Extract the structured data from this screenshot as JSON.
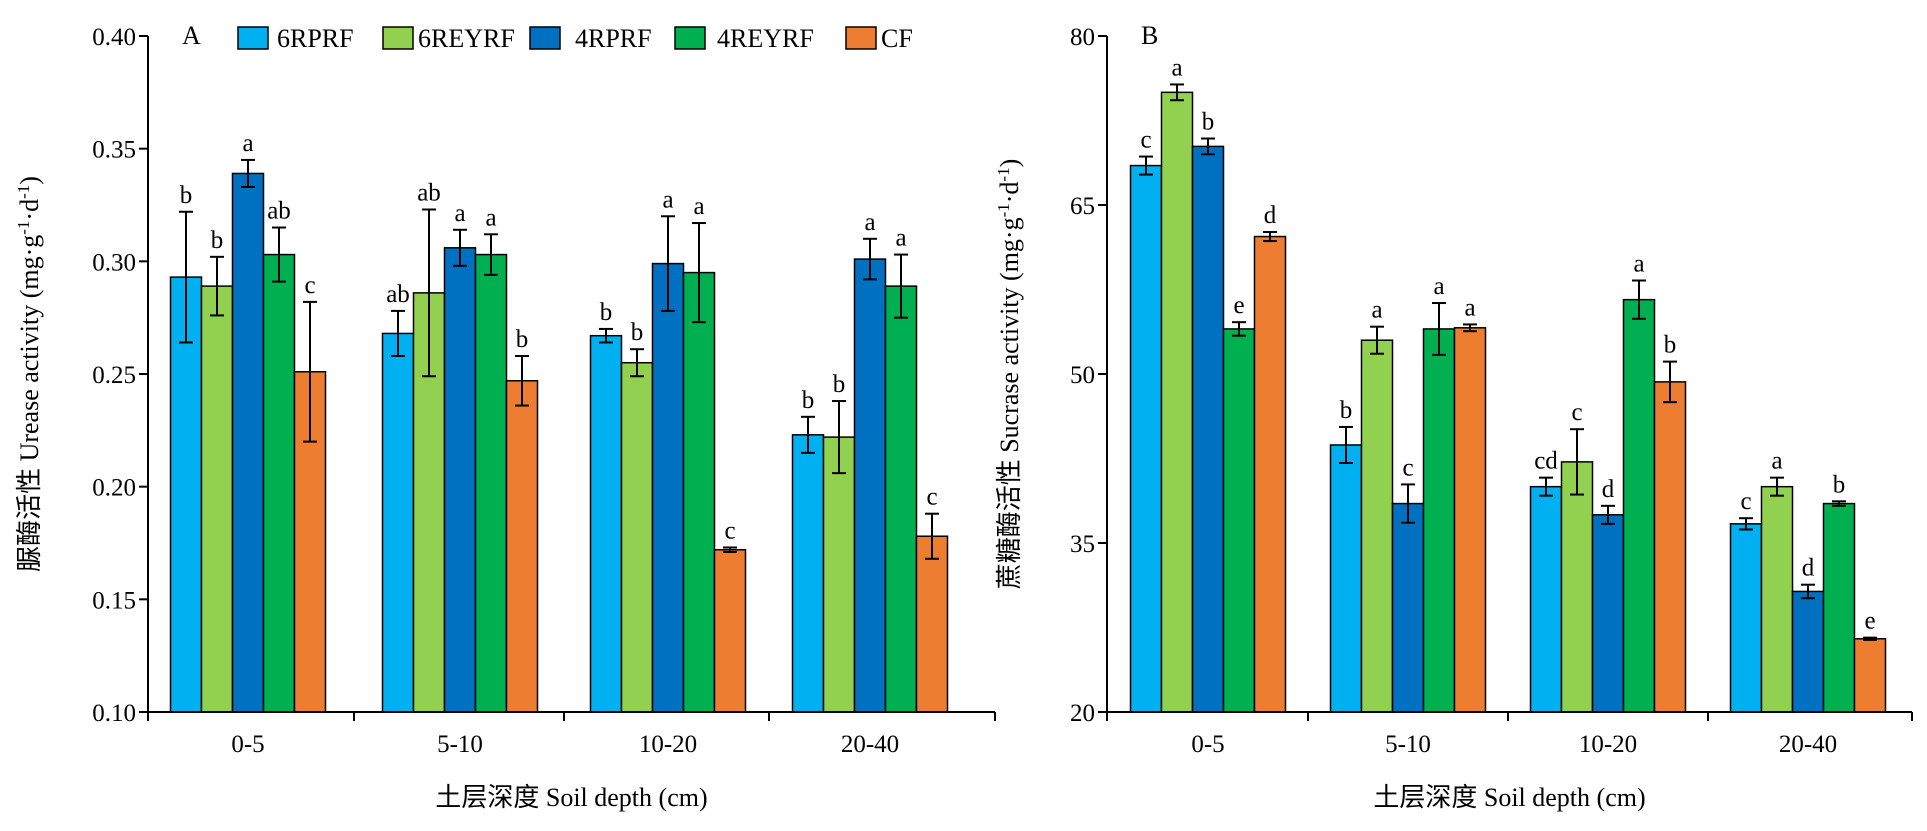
{
  "chart_data": [
    {
      "type": "bar",
      "panel_label": "A",
      "categories": [
        "0-5",
        "5-10",
        "10-20",
        "20-40"
      ],
      "series": [
        {
          "name": "6RPRF",
          "color": "#00b0f0",
          "values": [
            0.293,
            0.268,
            0.267,
            0.223
          ],
          "errors": [
            0.029,
            0.01,
            0.003,
            0.008
          ],
          "letters": [
            "b",
            "ab",
            "b",
            "b"
          ]
        },
        {
          "name": "6REYRF",
          "color": "#92d050",
          "values": [
            0.289,
            0.286,
            0.255,
            0.222
          ],
          "errors": [
            0.013,
            0.037,
            0.006,
            0.016
          ],
          "letters": [
            "b",
            "ab",
            "b",
            "b"
          ]
        },
        {
          "name": "4RPRF",
          "color": "#0070c0",
          "values": [
            0.339,
            0.306,
            0.299,
            0.301
          ],
          "errors": [
            0.006,
            0.008,
            0.021,
            0.009
          ],
          "letters": [
            "a",
            "a",
            "a",
            "a"
          ]
        },
        {
          "name": "4REYRF",
          "color": "#00b050",
          "values": [
            0.303,
            0.303,
            0.295,
            0.289
          ],
          "errors": [
            0.012,
            0.009,
            0.022,
            0.014
          ],
          "letters": [
            "ab",
            "a",
            "a",
            "a"
          ]
        },
        {
          "name": "CF",
          "color": "#ed7d31",
          "values": [
            0.251,
            0.247,
            0.172,
            0.178
          ],
          "errors": [
            0.031,
            0.011,
            0.001,
            0.01
          ],
          "letters": [
            "c",
            "b",
            "c",
            "c"
          ]
        }
      ],
      "xlabel": "土层深度 Soil depth (cm)",
      "ylabel_parts": [
        "脲酶活性 Urease activity (mg·g",
        "-1",
        "·d",
        "-1",
        ")"
      ],
      "ylim": [
        0.1,
        0.4
      ],
      "yticks": [
        "0.10",
        "0.15",
        "0.20",
        "0.25",
        "0.30",
        "0.35",
        "0.40"
      ],
      "legend": "top"
    },
    {
      "type": "bar",
      "panel_label": "B",
      "categories": [
        "0-5",
        "5-10",
        "10-20",
        "20-40"
      ],
      "series": [
        {
          "name": "6RPRF",
          "color": "#00b0f0",
          "values": [
            68.5,
            43.7,
            40.0,
            36.7
          ],
          "errors": [
            0.8,
            1.6,
            0.8,
            0.5
          ],
          "letters": [
            "c",
            "b",
            "cd",
            "c"
          ]
        },
        {
          "name": "6REYRF",
          "color": "#92d050",
          "values": [
            75.0,
            53.0,
            42.2,
            40.0
          ],
          "errors": [
            0.7,
            1.2,
            2.9,
            0.8
          ],
          "letters": [
            "a",
            "a",
            "c",
            "a"
          ]
        },
        {
          "name": "4RPRF",
          "color": "#0070c0",
          "values": [
            70.2,
            38.5,
            37.5,
            30.7
          ],
          "errors": [
            0.7,
            1.7,
            0.8,
            0.6
          ],
          "letters": [
            "b",
            "c",
            "d",
            "d"
          ]
        },
        {
          "name": "4REYRF",
          "color": "#00b050",
          "values": [
            54.0,
            54.0,
            56.6,
            38.5
          ],
          "errors": [
            0.6,
            2.3,
            1.7,
            0.2
          ],
          "letters": [
            "e",
            "a",
            "a",
            "b"
          ]
        },
        {
          "name": "CF",
          "color": "#ed7d31",
          "values": [
            62.2,
            54.1,
            49.3,
            26.5
          ],
          "errors": [
            0.4,
            0.3,
            1.8,
            0.1
          ],
          "letters": [
            "d",
            "a",
            "b",
            "e"
          ]
        }
      ],
      "xlabel": "土层深度 Soil depth (cm)",
      "ylabel_parts": [
        "蔗糖酶活性 Sucrase activity (mg·g",
        "-1",
        "·d",
        "-1",
        ")"
      ],
      "ylim": [
        20,
        80
      ],
      "yticks": [
        "20",
        "35",
        "50",
        "65",
        "80"
      ],
      "legend": "none"
    }
  ]
}
